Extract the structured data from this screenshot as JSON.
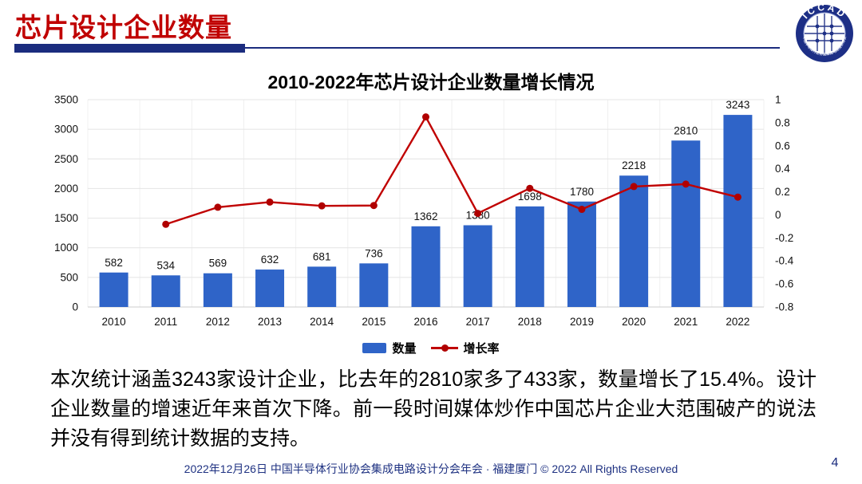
{
  "slide": {
    "header": {
      "title": "芯片设计企业数量"
    },
    "logo": {
      "name": "ICCAD",
      "ring_text": "中国半导体行业协会集成电路设计分会"
    },
    "body_text": "本次统计涵盖3243家设计企业，比去年的2810家多了433家，数量增长了15.4%。设计企业数量的增速近年来首次下降。前一段时间媒体炒作中国芯片企业大范围破产的说法并没有得到统计数据的支持。",
    "footer": {
      "text": "2022年12月26日 中国半导体行业协会集成电路设计分会年会 · 福建厦门 © 2022 All Rights Reserved",
      "page_number": "4"
    }
  },
  "chart_data": {
    "type": "bar",
    "title": "2010-2022年芯片设计企业数量增长情况",
    "categories": [
      "2010",
      "2011",
      "2012",
      "2013",
      "2014",
      "2015",
      "2016",
      "2017",
      "2018",
      "2019",
      "2020",
      "2021",
      "2022"
    ],
    "series": [
      {
        "name": "数量",
        "type": "bar",
        "axis": "left",
        "color": "#2f64c8",
        "values": [
          582,
          534,
          569,
          632,
          681,
          736,
          1362,
          1380,
          1698,
          1780,
          2218,
          2810,
          3243
        ]
      },
      {
        "name": "增长率",
        "type": "line",
        "axis": "right",
        "color": "#c00000",
        "marker_color": "#b00000",
        "values": [
          null,
          -0.082,
          0.066,
          0.111,
          0.078,
          0.081,
          0.85,
          0.013,
          0.23,
          0.048,
          0.246,
          0.267,
          0.154
        ]
      }
    ],
    "left_axis": {
      "min": 0,
      "max": 3500,
      "step": 500,
      "ticks": [
        "0",
        "500",
        "1000",
        "1500",
        "2000",
        "2500",
        "3000",
        "3500"
      ]
    },
    "right_axis": {
      "min": -0.8,
      "max": 1,
      "step": 0.2,
      "ticks": [
        "1",
        "0.8",
        "0.6",
        "0.4",
        "0.2",
        "0",
        "-0.2",
        "-0.4",
        "-0.6",
        "-0.8"
      ]
    },
    "grid": true,
    "legend_position": "bottom",
    "bar_labels_visible": true
  }
}
